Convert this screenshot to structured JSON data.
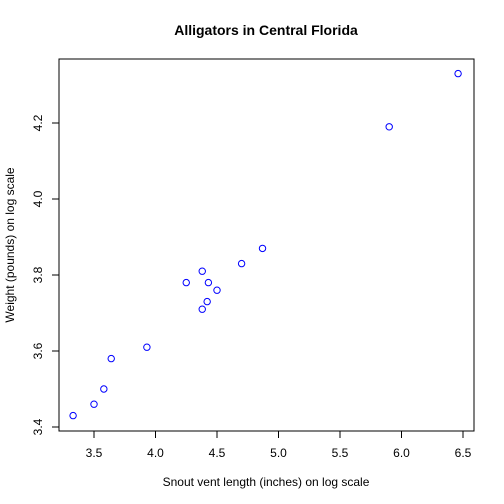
{
  "chart_data": {
    "type": "scatter",
    "title": "Alligators in Central Florida",
    "xlabel": "Snout vent length (inches) on log scale",
    "ylabel": "Weight (pounds) on log scale",
    "xlim": [
      3.28,
      6.5
    ],
    "ylim": [
      3.4,
      4.36
    ],
    "xticks": [
      "3.5",
      "4.0",
      "4.5",
      "5.0",
      "5.5",
      "6.0",
      "6.5"
    ],
    "yticks": [
      "3.4",
      "3.6",
      "3.8",
      "4.0",
      "4.2"
    ],
    "grid": false,
    "legend": "none",
    "point_color": "#0000ff",
    "points": [
      {
        "x": 3.33,
        "y": 3.43
      },
      {
        "x": 3.5,
        "y": 3.46
      },
      {
        "x": 3.58,
        "y": 3.5
      },
      {
        "x": 3.64,
        "y": 3.58
      },
      {
        "x": 3.93,
        "y": 3.61
      },
      {
        "x": 4.25,
        "y": 3.78
      },
      {
        "x": 4.38,
        "y": 3.71
      },
      {
        "x": 4.38,
        "y": 3.81
      },
      {
        "x": 4.42,
        "y": 3.73
      },
      {
        "x": 4.43,
        "y": 3.78
      },
      {
        "x": 4.5,
        "y": 3.76
      },
      {
        "x": 4.7,
        "y": 3.83
      },
      {
        "x": 4.87,
        "y": 3.87
      },
      {
        "x": 5.9,
        "y": 4.19
      },
      {
        "x": 6.46,
        "y": 4.33
      }
    ]
  }
}
